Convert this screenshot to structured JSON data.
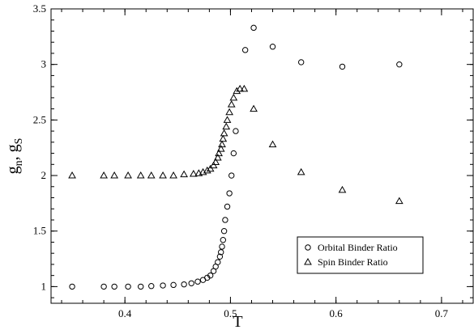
{
  "chart_data": {
    "type": "scatter",
    "xlabel": "T",
    "ylabel": "g",
    "ylabel_subscripts": [
      "n",
      "S"
    ],
    "ylabel_separator": ", ",
    "xlim": [
      0.33,
      0.73
    ],
    "ylim": [
      0.85,
      3.5
    ],
    "x_ticks": [
      0.4,
      0.5,
      0.6,
      0.7
    ],
    "x_tick_labels": [
      "0.4",
      "0.5",
      "0.6",
      "0.7"
    ],
    "y_ticks": [
      1,
      1.5,
      2,
      2.5,
      3,
      3.5
    ],
    "y_tick_labels": [
      "1",
      "1.5",
      "2",
      "2.5",
      "3",
      "3.5"
    ],
    "x_minor_step": 0.02,
    "y_minor_step": 0.1,
    "grid": false,
    "legend_position": "bottom-right",
    "series": [
      {
        "name": "Orbital Binder Ratio",
        "marker": "circle",
        "points": [
          [
            0.35,
            1.0
          ],
          [
            0.38,
            1.0
          ],
          [
            0.39,
            1.0
          ],
          [
            0.403,
            1.0
          ],
          [
            0.415,
            1.0
          ],
          [
            0.425,
            1.005
          ],
          [
            0.436,
            1.01
          ],
          [
            0.446,
            1.015
          ],
          [
            0.456,
            1.02
          ],
          [
            0.463,
            1.03
          ],
          [
            0.469,
            1.045
          ],
          [
            0.474,
            1.06
          ],
          [
            0.478,
            1.08
          ],
          [
            0.481,
            1.1
          ],
          [
            0.484,
            1.14
          ],
          [
            0.486,
            1.18
          ],
          [
            0.488,
            1.22
          ],
          [
            0.49,
            1.27
          ],
          [
            0.491,
            1.31
          ],
          [
            0.492,
            1.36
          ],
          [
            0.493,
            1.42
          ],
          [
            0.494,
            1.5
          ],
          [
            0.495,
            1.6
          ],
          [
            0.497,
            1.72
          ],
          [
            0.499,
            1.84
          ],
          [
            0.501,
            2.0
          ],
          [
            0.503,
            2.2
          ],
          [
            0.505,
            2.4
          ],
          [
            0.514,
            3.13
          ],
          [
            0.522,
            3.33
          ],
          [
            0.54,
            3.16
          ],
          [
            0.567,
            3.02
          ],
          [
            0.606,
            2.98
          ],
          [
            0.66,
            3.0
          ]
        ]
      },
      {
        "name": "Spin Binder Ratio",
        "marker": "triangle",
        "points": [
          [
            0.35,
            2.0
          ],
          [
            0.38,
            2.0
          ],
          [
            0.39,
            2.0
          ],
          [
            0.403,
            2.0
          ],
          [
            0.415,
            2.0
          ],
          [
            0.425,
            2.0
          ],
          [
            0.436,
            2.0
          ],
          [
            0.446,
            2.0
          ],
          [
            0.456,
            2.01
          ],
          [
            0.465,
            2.015
          ],
          [
            0.47,
            2.02
          ],
          [
            0.474,
            2.03
          ],
          [
            0.478,
            2.045
          ],
          [
            0.481,
            2.06
          ],
          [
            0.484,
            2.09
          ],
          [
            0.486,
            2.12
          ],
          [
            0.488,
            2.16
          ],
          [
            0.489,
            2.2
          ],
          [
            0.491,
            2.24
          ],
          [
            0.492,
            2.28
          ],
          [
            0.493,
            2.33
          ],
          [
            0.494,
            2.38
          ],
          [
            0.496,
            2.44
          ],
          [
            0.497,
            2.5
          ],
          [
            0.499,
            2.57
          ],
          [
            0.501,
            2.64
          ],
          [
            0.503,
            2.7
          ],
          [
            0.506,
            2.76
          ],
          [
            0.509,
            2.78
          ],
          [
            0.513,
            2.78
          ],
          [
            0.522,
            2.6
          ],
          [
            0.54,
            2.28
          ],
          [
            0.567,
            2.03
          ],
          [
            0.606,
            1.87
          ],
          [
            0.66,
            1.77
          ]
        ]
      }
    ]
  }
}
